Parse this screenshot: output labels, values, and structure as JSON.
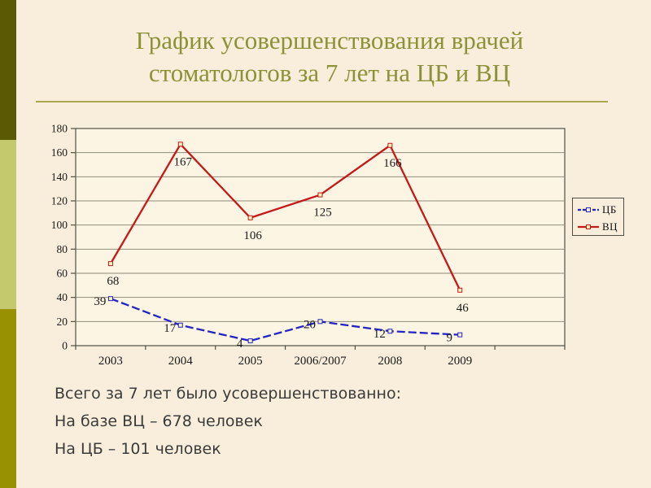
{
  "slide": {
    "title": {
      "line1": "График усовершенствования врачей",
      "line2": "стоматологов за 7 лет на ЦБ и ВЦ"
    },
    "summary": {
      "lines": [
        "Всего за 7 лет было усовершенствованно:",
        "На базе ВЦ – 678 человек",
        "На ЦБ – 101 человек"
      ]
    },
    "colors": {
      "background": "#F8EEDB",
      "title": "#8D9137",
      "rule": "#A9A84C",
      "sidebar_top": "#5C5905",
      "sidebar_middle": "#C5C96D",
      "sidebar_bottom": "#989203",
      "plot_fill": "#FCF5E4",
      "grid": "#8F8C7A",
      "axis": "#4F4F45",
      "chart_text": "#1B1B1B",
      "summary_text": "#3B3B3B"
    }
  },
  "chart_data": {
    "type": "line",
    "title": "",
    "xlabel": "",
    "ylabel": "",
    "categories": [
      "2003",
      "2004",
      "2005",
      "2006/2007",
      "2008",
      "2009"
    ],
    "series": [
      {
        "name": "ЦБ",
        "color": "#2424C4",
        "dash": "10 4",
        "label_position": "below-left",
        "values": [
          39,
          17,
          4,
          20,
          12,
          9
        ]
      },
      {
        "name": "ВЦ",
        "color": "#C41A1A",
        "dash": "",
        "label_position": "below",
        "values": [
          68,
          167,
          106,
          125,
          166,
          46
        ]
      }
    ],
    "ylim": [
      0,
      180
    ],
    "ytick_step": 20,
    "grid": true,
    "legend_position": "right",
    "axis_slots": 7,
    "marker": "square",
    "marker_fill": "#F5F1BE"
  }
}
